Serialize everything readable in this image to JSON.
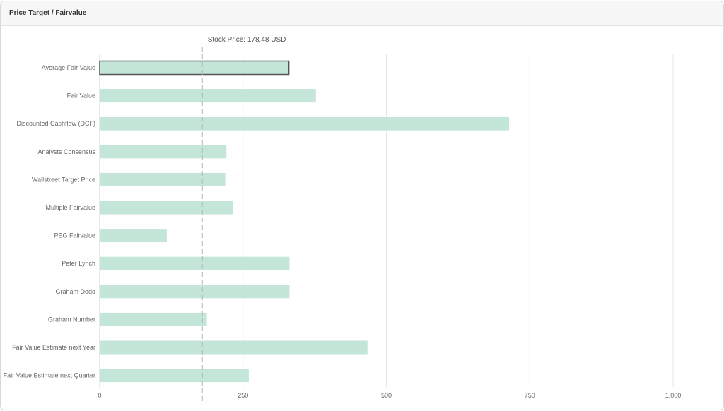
{
  "card": {
    "title": "Price Target / Fairvalue"
  },
  "chart_data": {
    "type": "bar",
    "orientation": "horizontal",
    "categories": [
      "Average Fair Value",
      "Fair Value",
      "Discounted Cashflow (DCF)",
      "Analysts Consensus",
      "Wallstreet Target Price",
      "Multiple Fairvalue",
      "PEG Fairvalue",
      "Peter Lynch",
      "Graham Dodd",
      "Graham Number",
      "Fair Value Estimate next Year",
      "Fair Value Estimate next Quarter"
    ],
    "values": [
      330,
      377,
      714,
      221,
      219,
      232,
      117,
      331,
      331,
      187,
      467,
      260
    ],
    "highlighted_index": 0,
    "xlim": [
      0,
      1000
    ],
    "xticks": [
      0,
      250,
      500,
      750,
      1000
    ],
    "xtick_labels": [
      "0",
      "250",
      "500",
      "750",
      "1,000"
    ],
    "grid": true,
    "reference_line": {
      "value": 178.48,
      "label": "Stock Price: 178.48 USD"
    },
    "colors": {
      "bar": "#c3e6d8",
      "highlight_border": "#555555",
      "reference_line": "#b5b5b5",
      "grid": "#e6e6e6",
      "label": "#666666"
    }
  }
}
